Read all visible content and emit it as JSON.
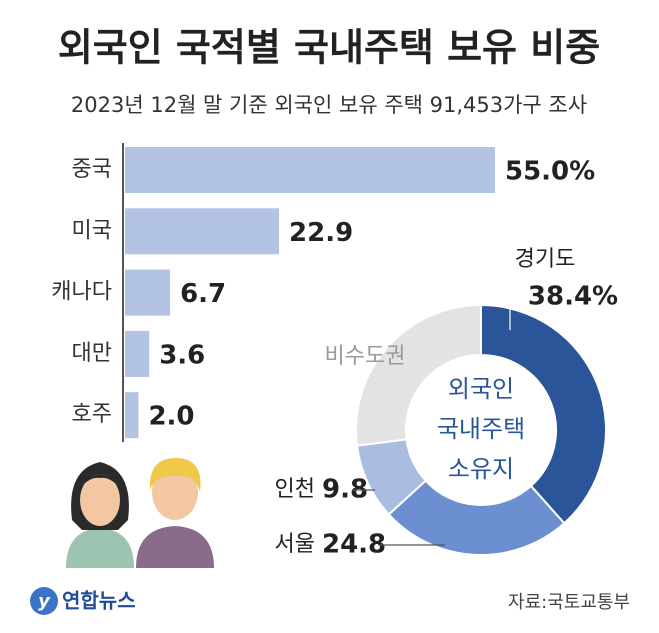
{
  "title": "외국인 국적별 국내주택 보유 비중",
  "subtitle": "2023년 12월 말 기준 외국인 보유 주택 91,453가구 조사",
  "source": "자료:국토교통부",
  "logo": "연합뉴스",
  "chart_data": [
    {
      "type": "bar",
      "categories": [
        "중국",
        "미국",
        "캐나다",
        "대만",
        "호주"
      ],
      "values": [
        55.0,
        22.9,
        6.7,
        3.6,
        2.0
      ],
      "value_labels": [
        "55.0%",
        "22.9",
        "6.7",
        "3.6",
        "2.0"
      ],
      "color": "#b3c3e3"
    },
    {
      "type": "pie",
      "categories": [
        "경기도",
        "서울",
        "인천",
        "비수도권"
      ],
      "values": [
        38.4,
        24.8,
        9.8,
        27.0
      ],
      "value_labels": [
        "38.4%",
        "24.8",
        "9.8",
        null
      ],
      "colors": [
        "#2b5599",
        "#6b8fd0",
        "#a9bde0",
        "#e3e3e3"
      ],
      "center_label": [
        "외국인",
        "국내주택",
        "소유지"
      ]
    }
  ]
}
